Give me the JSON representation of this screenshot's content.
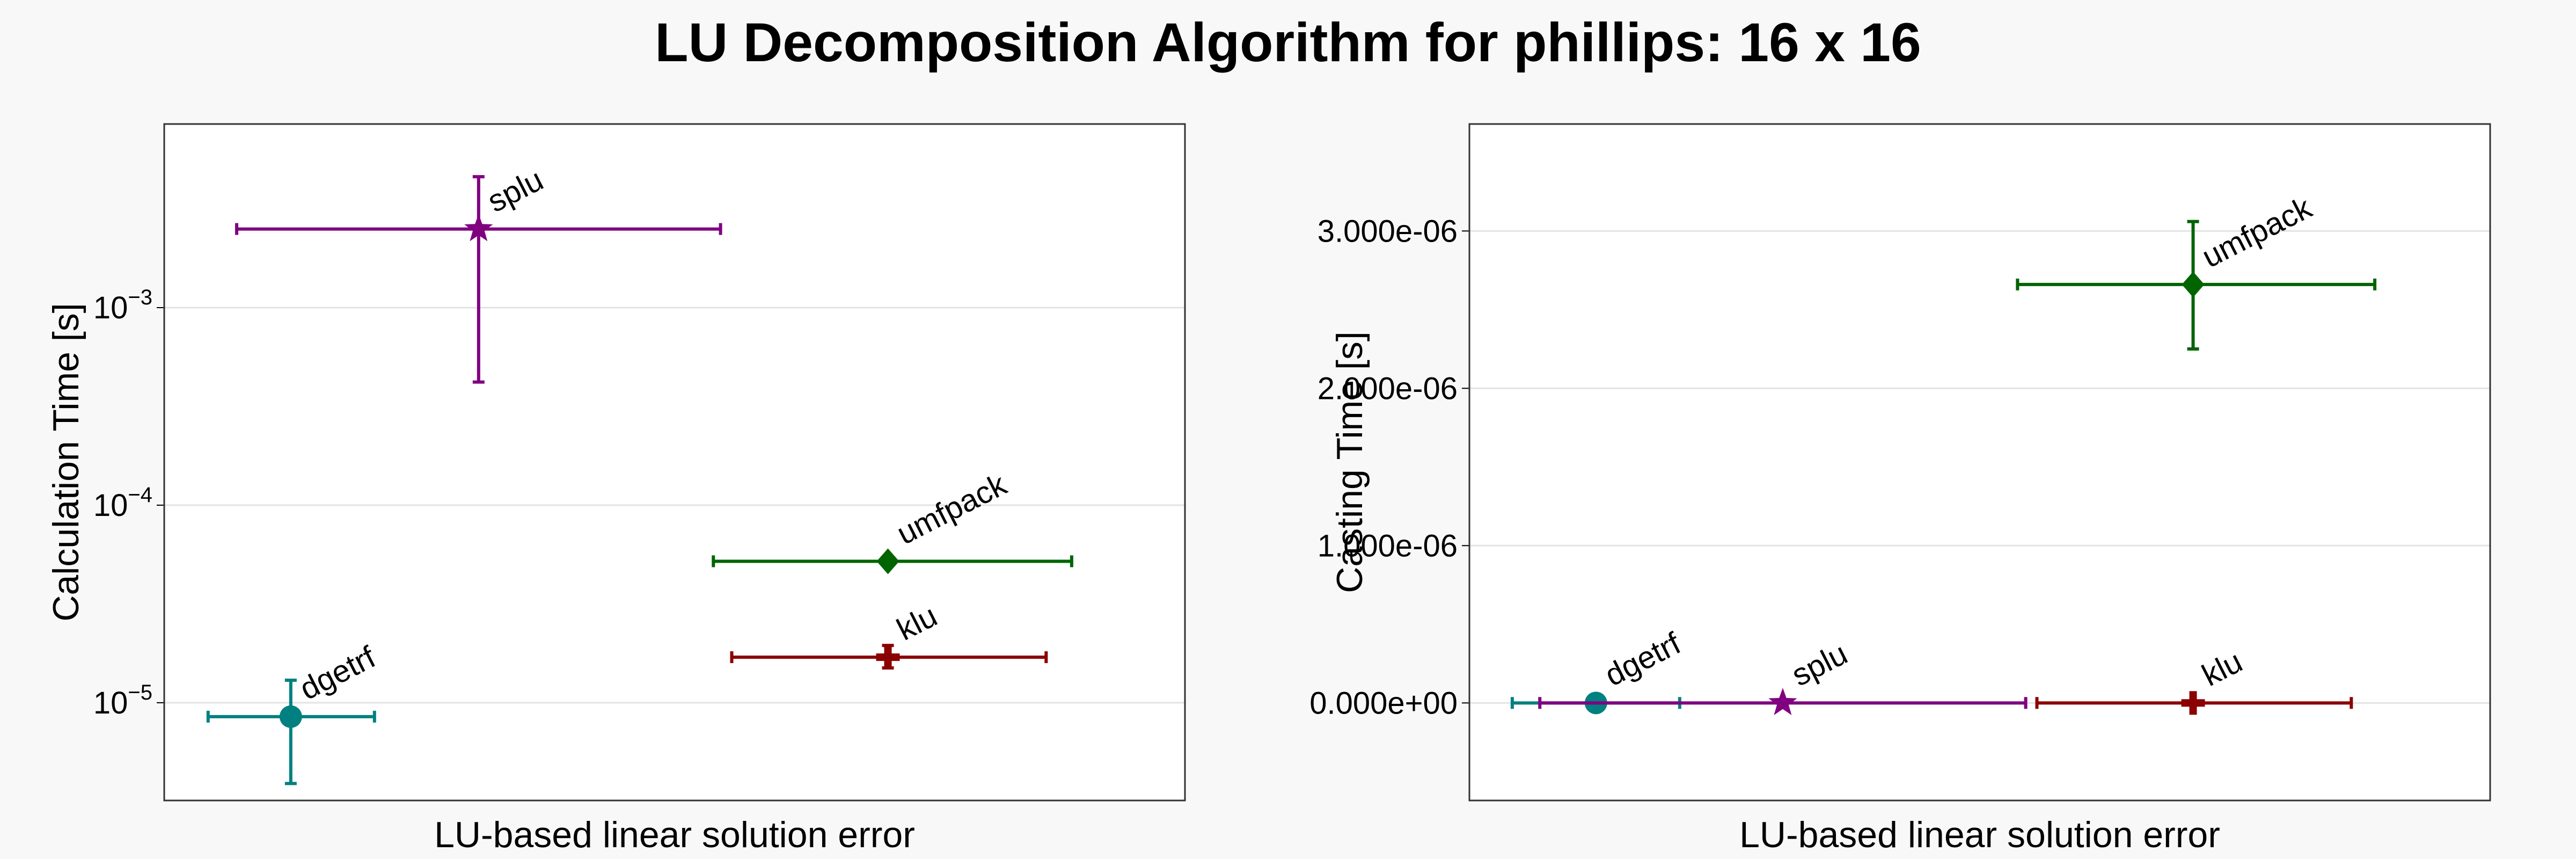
{
  "figure": {
    "title": "LU Decomposition Algorithm for phillips: 16 x 16"
  },
  "chart_data": [
    {
      "type": "scatter",
      "title": "",
      "xlabel": "LU-based linear solution error",
      "ylabel": "Calculation Time [s]",
      "yscale": "log",
      "ylim": [
        3.2e-06,
        0.0085
      ],
      "xlim": [
        0,
        1
      ],
      "x_ticks_shown": false,
      "yticks": [
        {
          "value": 1e-05,
          "base": "10",
          "exp": "−5"
        },
        {
          "value": 0.0001,
          "base": "10",
          "exp": "−4"
        },
        {
          "value": 0.001,
          "base": "10",
          "exp": "−3"
        }
      ],
      "grid": true,
      "legend": "none",
      "series": [
        {
          "name": "dgetrf",
          "marker": "circle",
          "color": "#008080",
          "x": 0.124,
          "y": 8.5e-06,
          "xerr": [
            0.043,
            0.206
          ],
          "yerr": [
            3.9e-06,
            1.3e-05
          ]
        },
        {
          "name": "splu",
          "marker": "star",
          "color": "#800080",
          "x": 0.308,
          "y": 0.0025,
          "xerr": [
            0.071,
            0.545
          ],
          "yerr": [
            0.00042,
            0.0046
          ]
        },
        {
          "name": "umfpack",
          "marker": "diamond",
          "color": "#006400",
          "x": 0.709,
          "y": 5.2e-05,
          "xerr": [
            0.538,
            0.889
          ],
          "yerr": [
            5.2e-05,
            5.2e-05
          ]
        },
        {
          "name": "klu",
          "marker": "cross",
          "color": "#8b0000",
          "x": 0.709,
          "y": 1.7e-05,
          "xerr": [
            0.556,
            0.864
          ],
          "yerr": [
            1.5e-05,
            1.95e-05
          ]
        }
      ]
    },
    {
      "type": "scatter",
      "title": "",
      "xlabel": "LU-based linear solution error",
      "ylabel": "Casting Time [s]",
      "yscale": "linear",
      "ylim": [
        -6.2e-07,
        3.68e-06
      ],
      "xlim": [
        0,
        1
      ],
      "x_ticks_shown": false,
      "yticks": [
        {
          "value": 0,
          "label": "0.000e+00"
        },
        {
          "value": 1e-06,
          "label": "1.000e-06"
        },
        {
          "value": 2e-06,
          "label": "2.000e-06"
        },
        {
          "value": 3e-06,
          "label": "3.000e-06"
        }
      ],
      "grid": true,
      "legend": "none",
      "series": [
        {
          "name": "dgetrf",
          "marker": "circle",
          "color": "#008080",
          "x": 0.124,
          "y": 0,
          "xerr": [
            0.042,
            0.206
          ],
          "yerr": [
            0,
            0
          ]
        },
        {
          "name": "splu",
          "marker": "star",
          "color": "#800080",
          "x": 0.307,
          "y": 0,
          "xerr": [
            0.069,
            0.545
          ],
          "yerr": [
            0,
            0
          ]
        },
        {
          "name": "umfpack",
          "marker": "diamond",
          "color": "#006400",
          "x": 0.709,
          "y": 2.66e-06,
          "xerr": [
            0.537,
            0.887
          ],
          "yerr": [
            2.25e-06,
            3.06e-06
          ]
        },
        {
          "name": "klu",
          "marker": "cross",
          "color": "#8b0000",
          "x": 0.709,
          "y": 0,
          "xerr": [
            0.556,
            0.864
          ],
          "yerr": [
            0,
            0
          ]
        }
      ]
    }
  ]
}
